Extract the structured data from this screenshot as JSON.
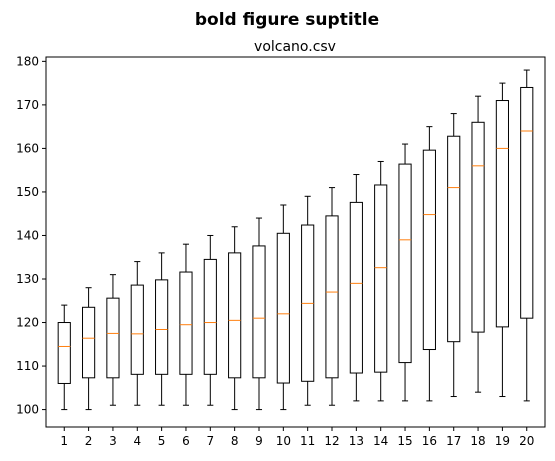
{
  "figure": {
    "suptitle": "bold figure suptitle"
  },
  "chart_data": {
    "type": "box",
    "title": "volcano.csv",
    "xlabel": "",
    "ylabel": "",
    "categories": [
      "1",
      "2",
      "3",
      "4",
      "5",
      "6",
      "7",
      "8",
      "9",
      "10",
      "11",
      "12",
      "13",
      "14",
      "15",
      "16",
      "17",
      "18",
      "19",
      "20"
    ],
    "ylim": [
      96,
      181
    ],
    "yticks": [
      100,
      110,
      120,
      130,
      140,
      150,
      160,
      170,
      180
    ],
    "grid": false,
    "colors": {
      "box": "#000000",
      "median": "#ff7f0e",
      "whisker": "#000000"
    },
    "boxes": [
      {
        "whislo": 100,
        "q1": 106,
        "med": 114.5,
        "q3": 120,
        "whishi": 124
      },
      {
        "whislo": 100,
        "q1": 107.3,
        "med": 116.4,
        "q3": 123.5,
        "whishi": 128
      },
      {
        "whislo": 101,
        "q1": 107.3,
        "med": 117.5,
        "q3": 125.6,
        "whishi": 131
      },
      {
        "whislo": 101,
        "q1": 108.1,
        "med": 117.4,
        "q3": 128.6,
        "whishi": 134
      },
      {
        "whislo": 101,
        "q1": 108.1,
        "med": 118.4,
        "q3": 129.8,
        "whishi": 136
      },
      {
        "whislo": 101,
        "q1": 108.1,
        "med": 119.5,
        "q3": 131.6,
        "whishi": 138
      },
      {
        "whislo": 101,
        "q1": 108.1,
        "med": 120,
        "q3": 134.5,
        "whishi": 140
      },
      {
        "whislo": 100,
        "q1": 107.3,
        "med": 120.5,
        "q3": 136,
        "whishi": 142
      },
      {
        "whislo": 100,
        "q1": 107.3,
        "med": 121,
        "q3": 137.6,
        "whishi": 144
      },
      {
        "whislo": 100,
        "q1": 106.1,
        "med": 122,
        "q3": 140.5,
        "whishi": 147
      },
      {
        "whislo": 101,
        "q1": 106.5,
        "med": 124.4,
        "q3": 142.4,
        "whishi": 149
      },
      {
        "whislo": 101,
        "q1": 107.3,
        "med": 127,
        "q3": 144.5,
        "whishi": 151
      },
      {
        "whislo": 102,
        "q1": 108.4,
        "med": 129,
        "q3": 147.6,
        "whishi": 154
      },
      {
        "whislo": 102,
        "q1": 108.6,
        "med": 132.6,
        "q3": 151.6,
        "whishi": 157
      },
      {
        "whislo": 102,
        "q1": 110.8,
        "med": 139,
        "q3": 156.4,
        "whishi": 161
      },
      {
        "whislo": 102,
        "q1": 113.8,
        "med": 144.8,
        "q3": 159.6,
        "whishi": 165
      },
      {
        "whislo": 103,
        "q1": 115.6,
        "med": 151,
        "q3": 162.8,
        "whishi": 168
      },
      {
        "whislo": 104,
        "q1": 117.8,
        "med": 156,
        "q3": 166,
        "whishi": 172
      },
      {
        "whislo": 103,
        "q1": 119,
        "med": 160,
        "q3": 171,
        "whishi": 175
      },
      {
        "whislo": 102,
        "q1": 121,
        "med": 164,
        "q3": 174,
        "whishi": 178
      }
    ]
  }
}
